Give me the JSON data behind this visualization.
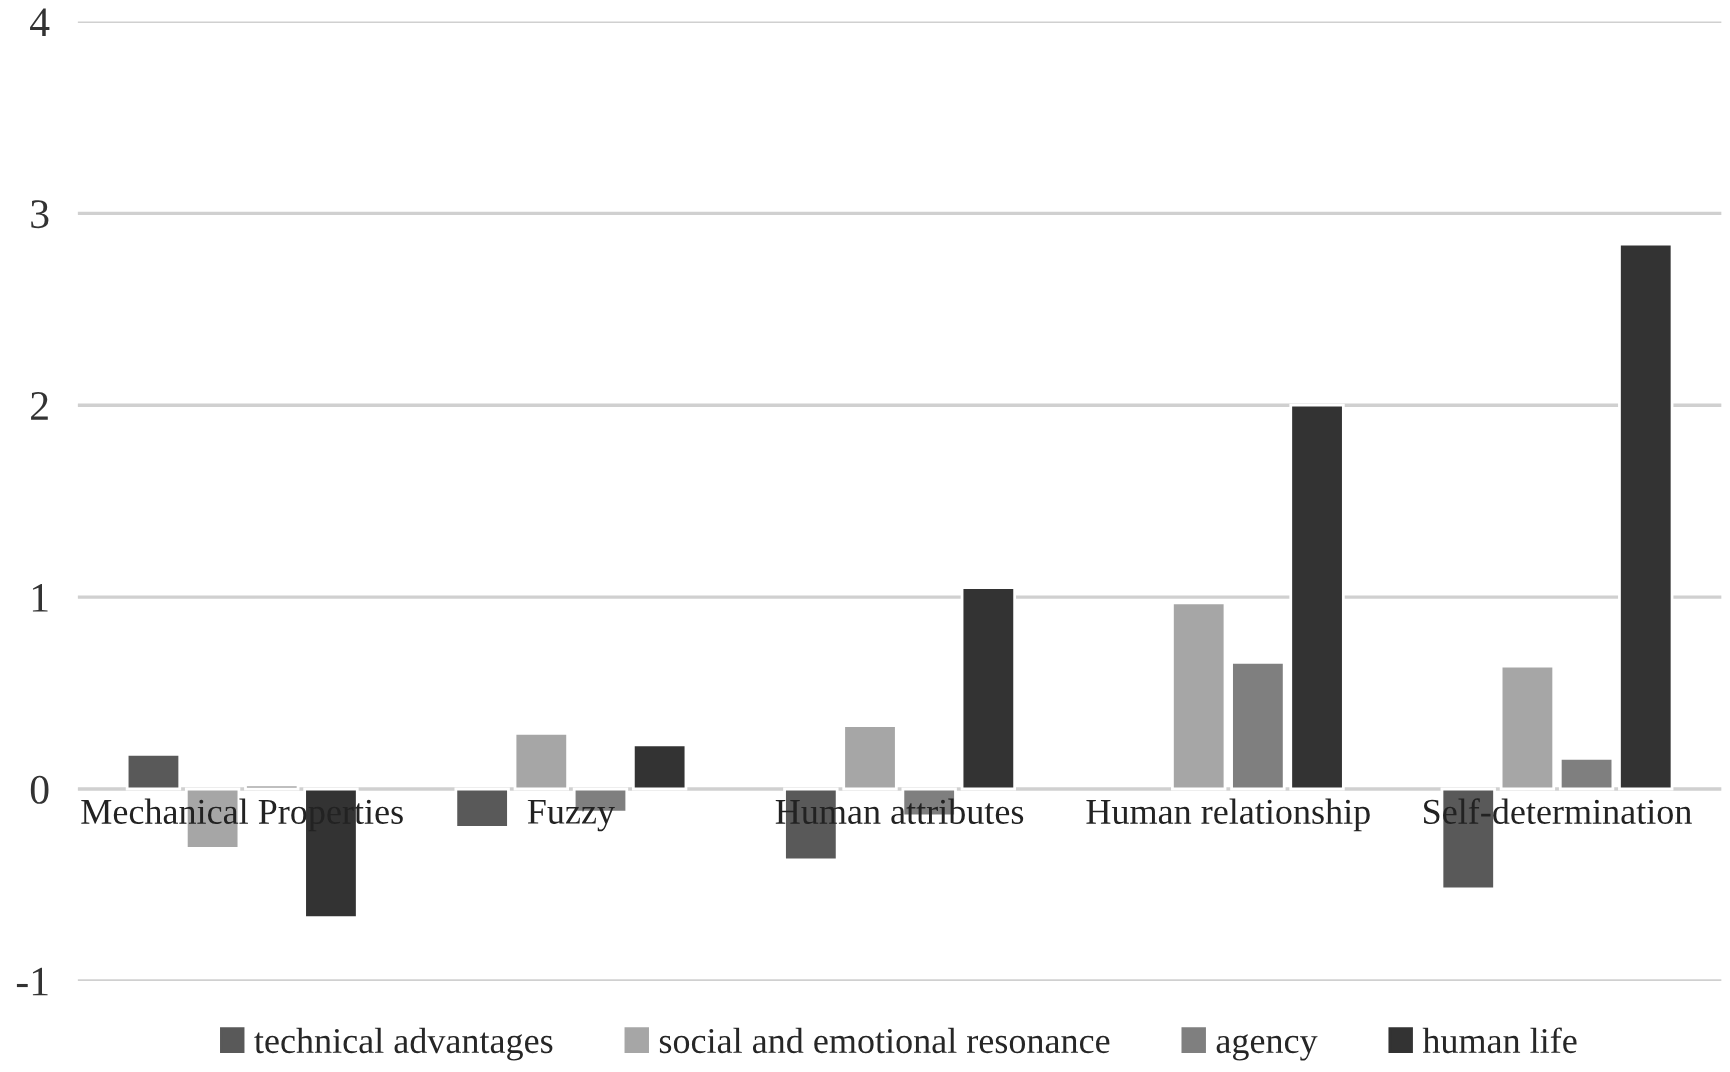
{
  "chart_data": {
    "type": "bar",
    "categories": [
      "Mechanical Properties",
      "Fuzzy",
      "Human attributes",
      "Human relationship",
      "Self-determination"
    ],
    "series": [
      {
        "name": "technical advantages",
        "color": "#595959",
        "values": [
          0.18,
          -0.2,
          -0.37,
          null,
          -0.52
        ]
      },
      {
        "name": "social and emotional resonance",
        "color": "#a6a6a6",
        "values": [
          -0.31,
          0.29,
          0.33,
          0.97,
          0.64
        ]
      },
      {
        "name": "agency",
        "color": "#7f7f7f",
        "values": [
          0.02,
          -0.12,
          -0.14,
          0.66,
          0.16
        ]
      },
      {
        "name": "human life",
        "color": "#333333",
        "values": [
          -0.67,
          0.23,
          1.05,
          2.0,
          2.84
        ]
      }
    ],
    "ylim": [
      -1,
      4
    ],
    "yticks": [
      -1,
      0,
      1,
      2,
      3,
      4
    ],
    "grid": "y",
    "legend": "bottom"
  }
}
